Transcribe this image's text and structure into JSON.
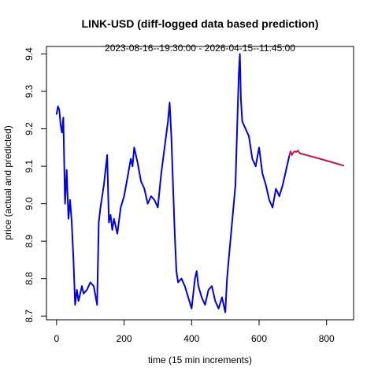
{
  "chart_data": {
    "type": "line",
    "title": "LINK-USD (diff-logged data based prediction)",
    "subtitle": "2023-08-16--19:30:00  -  2026-04-15--11:45:00",
    "xlabel": "time (15 min increments)",
    "ylabel": "price (actual and predicted)",
    "xlim": [
      -30,
      880
    ],
    "ylim": [
      8.69,
      9.42
    ],
    "x_ticks": [
      0,
      200,
      400,
      600,
      800
    ],
    "y_ticks": [
      8.7,
      8.8,
      8.9,
      9.0,
      9.1,
      9.2,
      9.3,
      9.4
    ],
    "grid": false,
    "series": [
      {
        "role": "actual",
        "color": "#0000ee",
        "x": [
          0,
          4,
          8,
          12,
          16,
          20,
          25,
          30,
          35,
          40,
          45,
          50,
          55,
          60,
          65,
          70,
          75,
          80,
          90,
          100,
          110,
          120,
          125,
          130,
          140,
          150,
          155,
          160,
          165,
          170,
          180,
          190,
          200,
          210,
          220,
          225,
          230,
          240,
          250,
          260,
          270,
          280,
          290,
          300,
          310,
          320,
          330,
          335,
          340,
          345,
          350,
          355,
          360,
          370,
          380,
          390,
          400,
          410,
          415,
          420,
          430,
          440,
          450,
          460,
          470,
          480,
          490,
          500,
          505,
          510,
          520,
          530,
          535,
          540,
          543,
          546,
          550,
          560,
          570,
          580,
          590,
          600,
          610,
          620,
          630,
          640,
          650,
          660,
          670,
          680,
          690
        ],
        "y": [
          9.24,
          9.26,
          9.25,
          9.21,
          9.19,
          9.23,
          9.0,
          9.09,
          8.96,
          9.01,
          8.95,
          8.85,
          8.73,
          8.77,
          8.74,
          8.76,
          8.78,
          8.76,
          8.77,
          8.79,
          8.78,
          8.73,
          8.95,
          8.99,
          9.05,
          9.13,
          8.95,
          8.97,
          8.93,
          8.96,
          8.92,
          8.99,
          9.02,
          9.07,
          9.12,
          9.1,
          9.15,
          9.11,
          9.06,
          9.04,
          9.0,
          9.02,
          9.01,
          8.99,
          9.08,
          9.15,
          9.22,
          9.27,
          9.18,
          9.05,
          8.92,
          8.82,
          8.79,
          8.8,
          8.78,
          8.75,
          8.72,
          8.8,
          8.82,
          8.78,
          8.75,
          8.73,
          8.77,
          8.78,
          8.74,
          8.72,
          8.75,
          8.71,
          8.8,
          8.85,
          8.95,
          9.05,
          9.2,
          9.35,
          9.4,
          9.28,
          9.22,
          9.2,
          9.18,
          9.12,
          9.1,
          9.15,
          9.08,
          9.05,
          9.01,
          8.99,
          9.04,
          9.02,
          9.05,
          9.09,
          9.13
        ]
      },
      {
        "role": "predicted",
        "color": "#cc1144",
        "x": [
          690,
          693,
          697,
          700,
          705,
          710,
          715,
          720,
          760,
          800,
          850
        ],
        "y": [
          9.13,
          9.14,
          9.13,
          9.135,
          9.14,
          9.138,
          9.142,
          9.135,
          9.125,
          9.115,
          9.102
        ]
      }
    ]
  }
}
